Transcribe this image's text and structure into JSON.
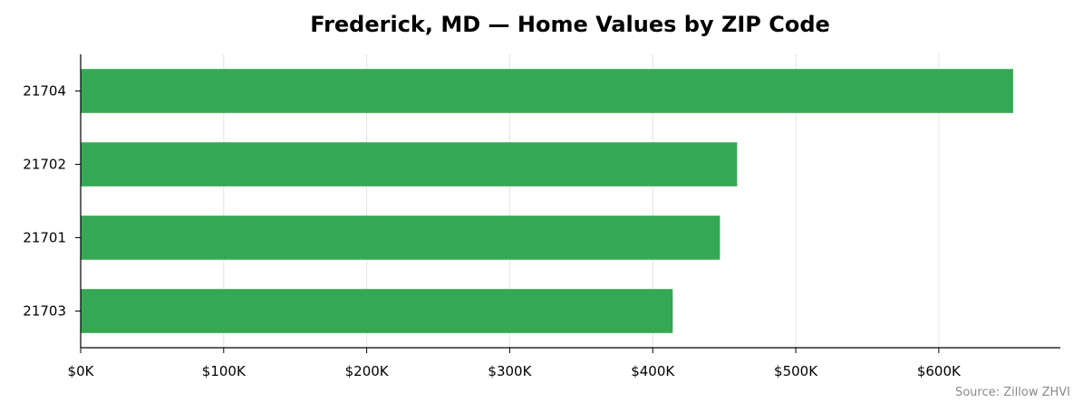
{
  "chart_data": {
    "type": "bar",
    "orientation": "horizontal",
    "title": "Frederick, MD — Home Values by ZIP Code",
    "xlabel": "",
    "ylabel": "",
    "categories": [
      "21704",
      "21702",
      "21701",
      "21703"
    ],
    "values": [
      652000,
      459000,
      447000,
      414000
    ],
    "xlim": [
      0,
      685000
    ],
    "x_ticks": [
      0,
      100000,
      200000,
      300000,
      400000,
      500000,
      600000
    ],
    "x_tick_labels": [
      "$0K",
      "$100K",
      "$200K",
      "$300K",
      "$400K",
      "$500K",
      "$600K"
    ],
    "grid": "vertical",
    "bar_color": "#34a853",
    "source_note": "Source: Zillow ZHVI"
  }
}
